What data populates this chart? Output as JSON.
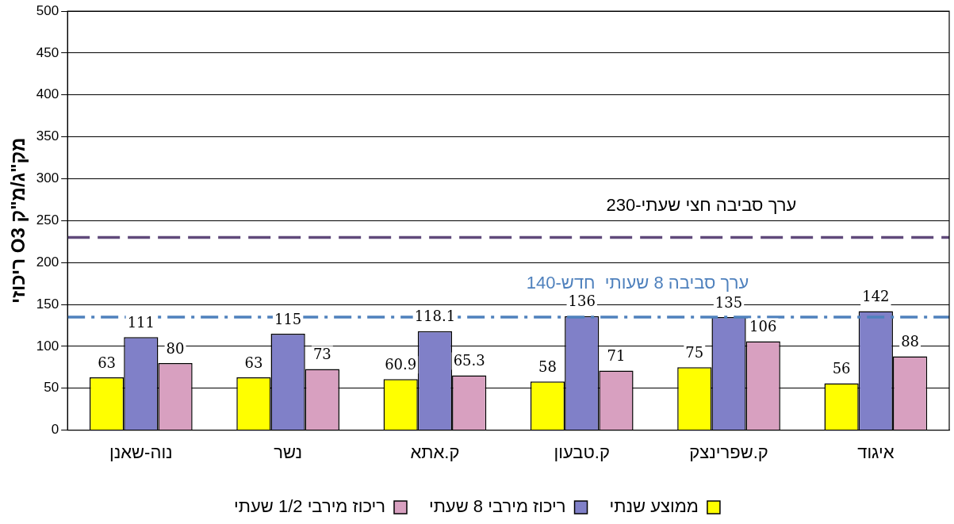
{
  "chart_data": {
    "type": "bar",
    "ylabel": "ריכוזי O3 מק\"ג/מ\"ק",
    "categories": [
      "נוה-שאנן",
      "נשר",
      "ק.אתא",
      "ק.טבעון",
      "ק.שפרינצק",
      "איגוד"
    ],
    "series": [
      {
        "name": "ממוצע שנתי",
        "color": "#ffff00",
        "values": [
          63,
          63,
          60.9,
          58,
          75,
          56
        ]
      },
      {
        "name": "ריכוז מירבי 8 שעתי",
        "color": "#8080c8",
        "values": [
          111,
          115,
          118.1,
          136,
          135,
          142
        ]
      },
      {
        "name": "ריכוז מירבי 1/2 שעתי",
        "color": "#d8a0c0",
        "values": [
          80,
          73,
          65.3,
          71,
          106,
          88
        ]
      }
    ],
    "ylim": [
      0,
      500
    ],
    "yticks": [
      0,
      50,
      100,
      150,
      200,
      250,
      300,
      350,
      400,
      450,
      500
    ],
    "grid": "y",
    "legend": "bottom",
    "data_labels": true,
    "ref_lines": [
      {
        "axis": "y",
        "value": 230,
        "label": "ערך סביבה חצי שעתי-230",
        "color": "#604a7b",
        "line_style": "dashed"
      },
      {
        "axis": "y",
        "value": 135,
        "label": "ערך סביבה 8 שעותי  חדש-140",
        "color": "#4f81bd",
        "line_style": "dashdot"
      }
    ]
  }
}
